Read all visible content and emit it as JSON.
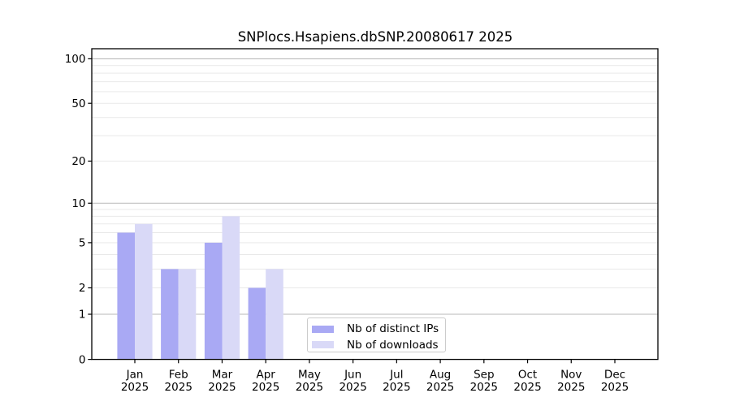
{
  "title": "SNPlocs.Hsapiens.dbSNP.20080617 2025",
  "colors": {
    "distinct_ips": "#a9a9f4",
    "downloads": "#d9d9f7",
    "grid_major": "#bababa",
    "grid_minor": "#e9e9e9",
    "axis": "#000000",
    "text": "#000000",
    "legend_border": "#cccccc",
    "background": "#ffffff"
  },
  "legend": {
    "position": "lower center",
    "items": [
      {
        "key": "distinct_ips",
        "label": "Nb of distinct IPs"
      },
      {
        "key": "downloads",
        "label": "Nb of downloads"
      }
    ]
  },
  "chart_data": {
    "type": "bar",
    "title": "SNPlocs.Hsapiens.dbSNP.20080617 2025",
    "categories": [
      "Jan",
      "Feb",
      "Mar",
      "Apr",
      "May",
      "Jun",
      "Jul",
      "Aug",
      "Sep",
      "Oct",
      "Nov",
      "Dec"
    ],
    "x_sublabel": "2025",
    "series": [
      {
        "key": "distinct_ips",
        "name": "Nb of distinct IPs",
        "values": [
          6,
          3,
          5,
          2,
          0,
          0,
          0,
          0,
          0,
          0,
          0,
          0
        ]
      },
      {
        "key": "downloads",
        "name": "Nb of downloads",
        "values": [
          7,
          3,
          8,
          3,
          0,
          0,
          0,
          0,
          0,
          0,
          0,
          0
        ]
      }
    ],
    "y_ticks": [
      0,
      1,
      2,
      5,
      10,
      20,
      50,
      100
    ],
    "y_minor_gridlines": [
      2,
      3,
      4,
      5,
      6,
      7,
      8,
      9,
      20,
      30,
      40,
      50,
      60,
      70,
      80,
      90
    ],
    "y_major_gridlines": [
      1,
      10,
      100
    ],
    "ylim": [
      0,
      116
    ],
    "y_scale": "log10(1+x)",
    "xlabel": "",
    "ylabel": "",
    "grid": "horizontal",
    "legend_position": "lower center"
  }
}
